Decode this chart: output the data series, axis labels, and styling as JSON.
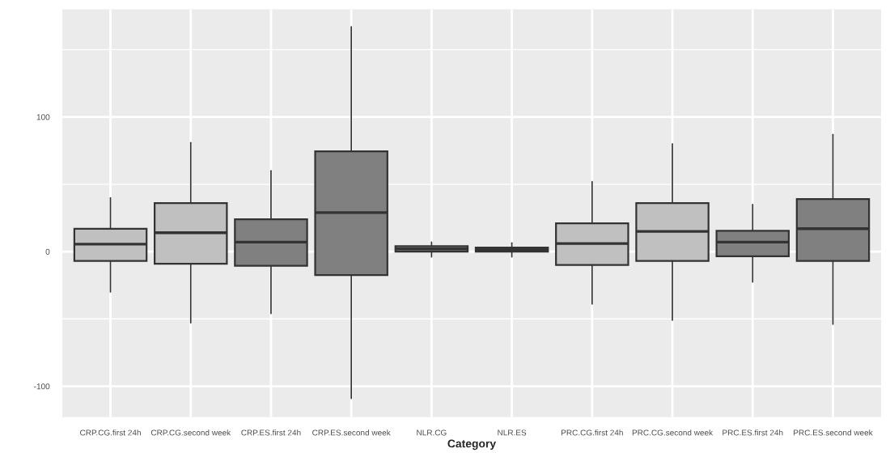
{
  "chart_data": {
    "type": "box",
    "xlabel": "Category",
    "categories": [
      "CRP.CG.first 24h",
      "CRP.CG.second week",
      "CRP.ES.first 24h",
      "CRP.ES.second week",
      "NLR.CG",
      "NLR.ES",
      "PRC.CG.first 24h",
      "PRC.CG.second week",
      "PRC.ES.first 24h",
      "PRC.ES.second week"
    ],
    "colors": [
      "#c0c0c0",
      "#c0c0c0",
      "#808080",
      "#808080",
      "#909090",
      "#909090",
      "#c0c0c0",
      "#c0c0c0",
      "#808080",
      "#808080"
    ],
    "boxes": [
      {
        "low": -30,
        "q1": -7,
        "median": 5.5,
        "q3": 17,
        "high": 40
      },
      {
        "low": -53,
        "q1": -9,
        "median": 14,
        "q3": 36,
        "high": 81
      },
      {
        "low": -46,
        "q1": -10.5,
        "median": 7,
        "q3": 24,
        "high": 60
      },
      {
        "low": -109,
        "q1": -17.5,
        "median": 29,
        "q3": 74.5,
        "high": 167
      },
      {
        "low": -4,
        "q1": 0,
        "median": 2,
        "q3": 4,
        "high": 7
      },
      {
        "low": -4,
        "q1": 0,
        "median": 1.5,
        "q3": 3,
        "high": 6.5
      },
      {
        "low": -39,
        "q1": -10,
        "median": 6,
        "q3": 21,
        "high": 52
      },
      {
        "low": -51,
        "q1": -7,
        "median": 15,
        "q3": 36,
        "high": 80
      },
      {
        "low": -22.6,
        "q1": -3.5,
        "median": 7,
        "q3": 15.5,
        "high": 35
      },
      {
        "low": -54,
        "q1": -7,
        "median": 17,
        "q3": 39,
        "high": 87
      }
    ],
    "ylim": [
      -123,
      180
    ],
    "yticks": [
      -100,
      0,
      100
    ],
    "grid": true
  }
}
